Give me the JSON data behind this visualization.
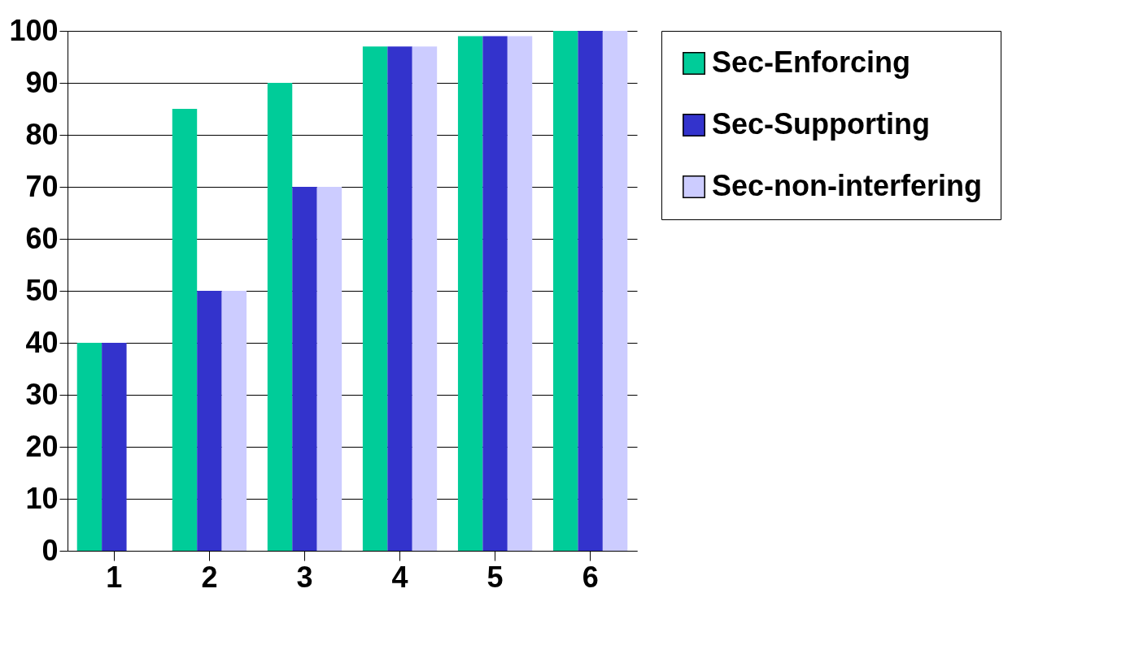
{
  "chart_data": {
    "type": "bar",
    "categories": [
      "1",
      "2",
      "3",
      "4",
      "5",
      "6"
    ],
    "series": [
      {
        "name": "Sec-Enforcing",
        "color": "#00cc99",
        "values": [
          40,
          85,
          90,
          97,
          99,
          100
        ]
      },
      {
        "name": "Sec-Supporting",
        "color": "#3333cc",
        "values": [
          40,
          50,
          70,
          97,
          99,
          100
        ]
      },
      {
        "name": "Sec-non-interfering",
        "color": "#ccccff",
        "values": [
          0,
          50,
          70,
          97,
          99,
          100
        ]
      }
    ],
    "ylim": [
      0,
      100
    ],
    "yticks": [
      0,
      10,
      20,
      30,
      40,
      50,
      60,
      70,
      80,
      90,
      100
    ],
    "grid": "y",
    "legend": "right"
  }
}
